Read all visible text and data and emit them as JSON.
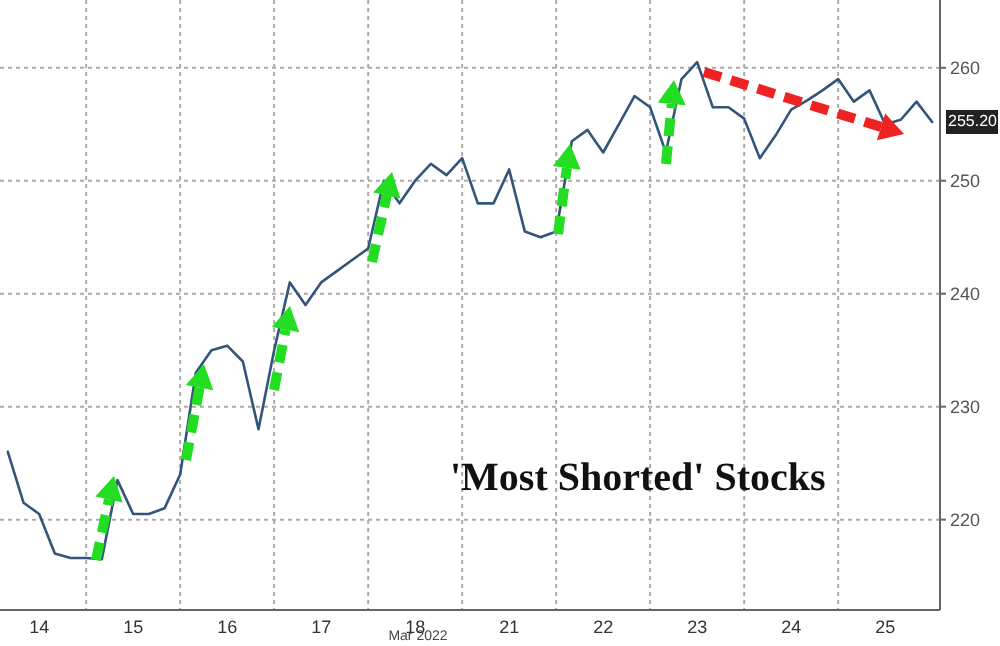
{
  "chart_data": {
    "type": "line",
    "title": "'Most Shorted' Stocks",
    "xlabel": "Mar 2022",
    "ylim": [
      212,
      266
    ],
    "yticks": [
      220,
      230,
      240,
      250,
      260
    ],
    "grid": true,
    "marker": "none",
    "line_style": "solid",
    "categories": [
      null,
      null,
      "14",
      null,
      null,
      null,
      null,
      null,
      "15",
      null,
      null,
      null,
      null,
      null,
      "16",
      null,
      null,
      null,
      null,
      null,
      "17",
      null,
      null,
      null,
      null,
      null,
      "18",
      null,
      null,
      null,
      null,
      null,
      "21",
      null,
      null,
      null,
      null,
      null,
      "22",
      null,
      null,
      null,
      null,
      null,
      "23",
      null,
      null,
      null,
      null,
      null,
      "24",
      null,
      null,
      null,
      null,
      null,
      "25",
      null,
      null,
      null
    ],
    "series": [
      {
        "color": "#34557a",
        "values": [
          226,
          221.5,
          220.5,
          217,
          216.6,
          216.6,
          216.5,
          223.5,
          220.5,
          220.5,
          221,
          224,
          233,
          235,
          235.4,
          234,
          228,
          235,
          241,
          239,
          241,
          242,
          243,
          244,
          250,
          248,
          250,
          251.5,
          250.5,
          252,
          248,
          248,
          251,
          245.5,
          245,
          245.5,
          253.5,
          254.5,
          252.5,
          255,
          257.5,
          256.5,
          252.5,
          259,
          260.5,
          256.5,
          256.5,
          255.5,
          252,
          254,
          256.3,
          257.1,
          258,
          259,
          257,
          258,
          255,
          255.4,
          257,
          255.2
        ]
      }
    ],
    "annotations": [
      {
        "text": "255.20",
        "y": 255.2
      }
    ]
  }
}
